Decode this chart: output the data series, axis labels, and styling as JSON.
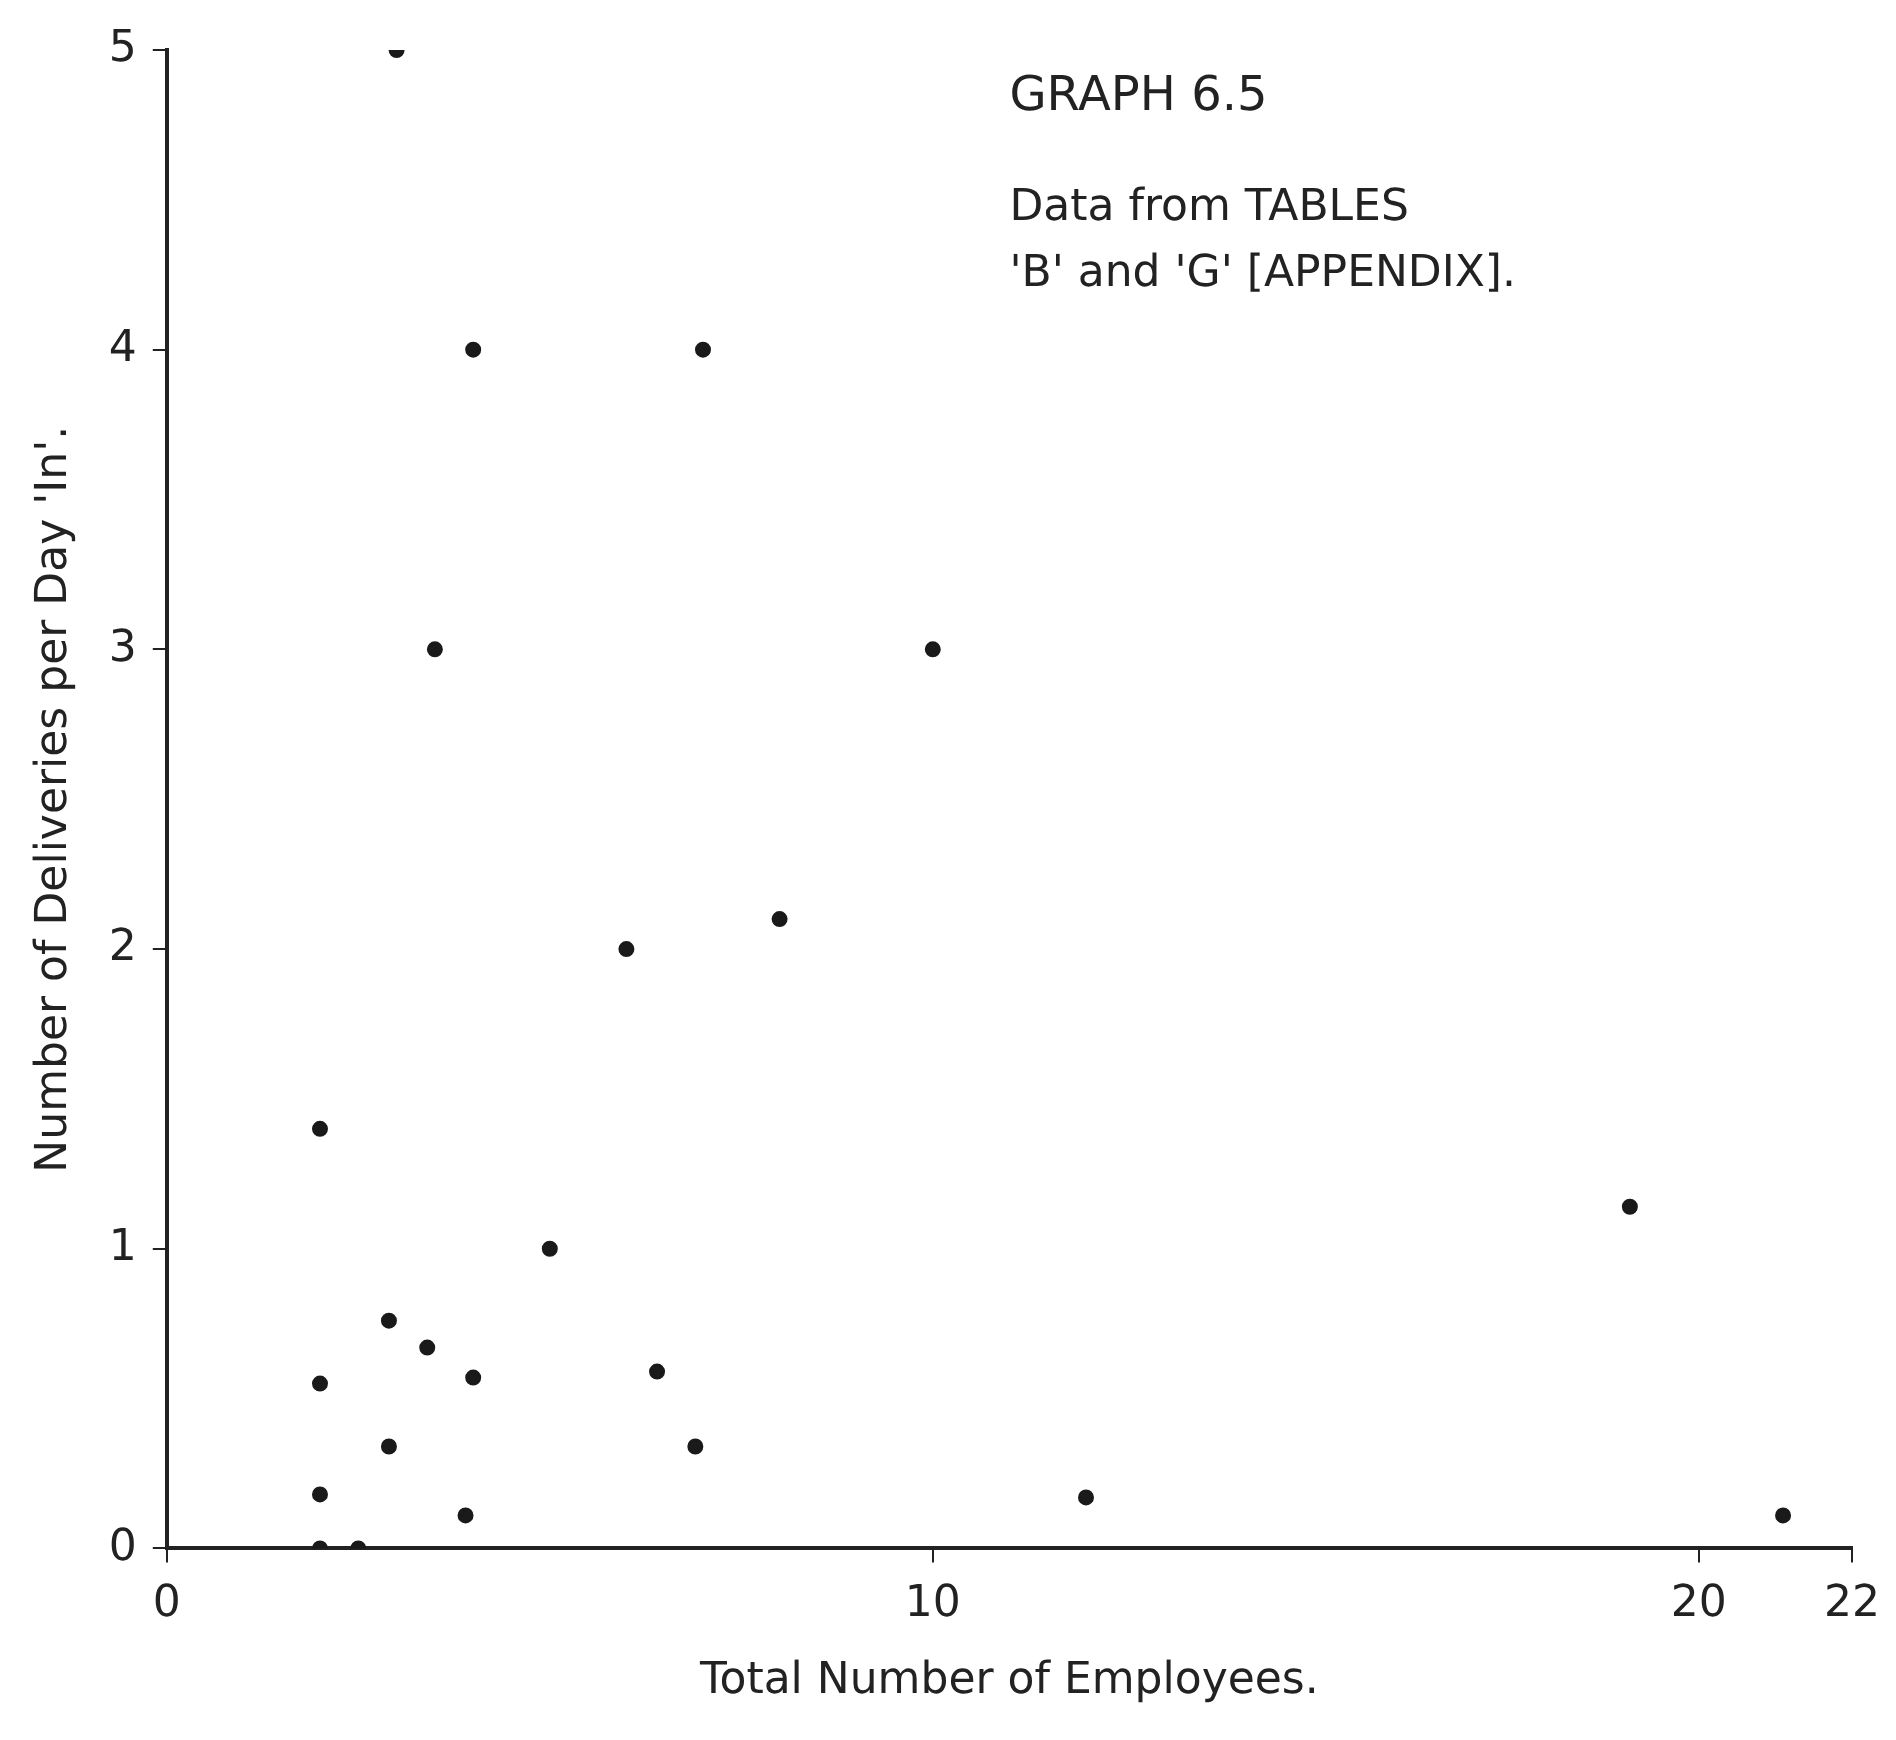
{
  "chart_data": {
    "type": "scatter",
    "title": "GRAPH 6.5",
    "subtitle": "Data from TABLES 'B' and 'G' [APPENDIX].",
    "xlabel": "Total Number of Employees.",
    "ylabel": "Number of Deliveries per Day 'In'.",
    "x": [
      3,
      4,
      7,
      3.5,
      10,
      8,
      6,
      2,
      5,
      2.9,
      3.4,
      4,
      2,
      6.4,
      2.9,
      6.9,
      2,
      3.9,
      2,
      2.5,
      12,
      19.1,
      21.1
    ],
    "series": [
      {
        "color": "#1a1a1a",
        "values": [
          5,
          4,
          4,
          3,
          3,
          2.1,
          2,
          1.4,
          1,
          0.76,
          0.67,
          0.57,
          0.55,
          0.59,
          0.34,
          0.34,
          0.18,
          0.11,
          0,
          0,
          0.17,
          1.14,
          0.11
        ]
      }
    ],
    "xlim": [
      0,
      22
    ],
    "xticks": [
      0,
      10,
      20,
      22
    ],
    "ylim": [
      0,
      5
    ],
    "yticks": [
      0,
      1,
      2,
      3,
      4,
      5
    ],
    "grid": false,
    "legend": false,
    "marker": "circle"
  }
}
